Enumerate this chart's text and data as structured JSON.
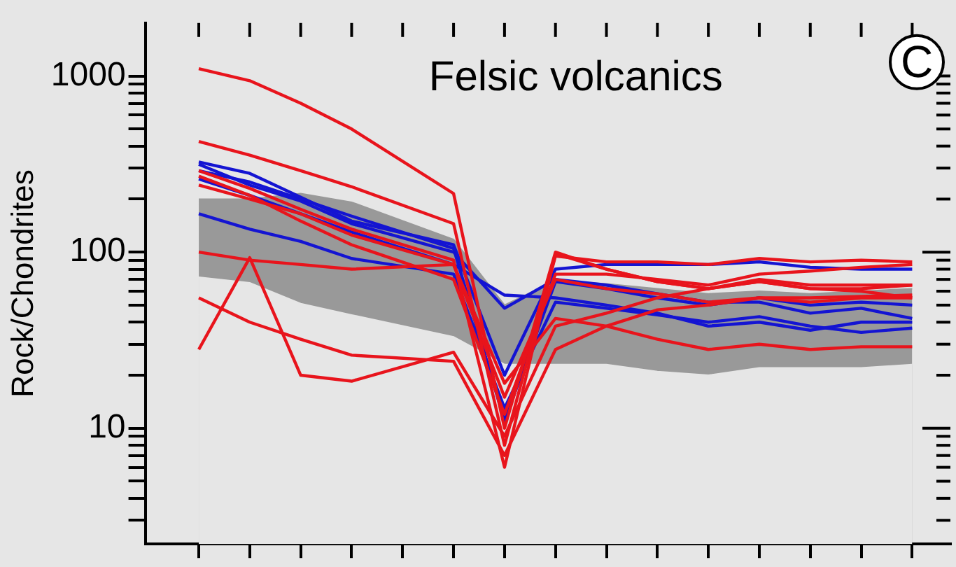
{
  "chart_data": {
    "type": "line",
    "title": "Felsic volcanics",
    "ylabel": "Rock/Chondrites",
    "annotations": [
      "C"
    ],
    "categories": [
      null,
      null,
      null,
      null,
      null,
      null,
      null,
      null,
      null,
      null,
      null,
      null,
      null,
      null,
      null
    ],
    "log": true,
    "grid": false,
    "legend": false,
    "marker": "none",
    "line_style": "solid",
    "ylim": [
      2.2,
      2000
    ],
    "yticks": [
      {
        "value": 3,
        "label": null
      },
      {
        "value": 4,
        "label": null
      },
      {
        "value": 5,
        "label": null
      },
      {
        "value": 6,
        "label": null
      },
      {
        "value": 7,
        "label": null
      },
      {
        "value": 8,
        "label": null
      },
      {
        "value": 9,
        "label": null
      },
      10,
      {
        "value": 20,
        "label": null
      },
      {
        "value": 30,
        "label": null
      },
      {
        "value": 40,
        "label": null
      },
      {
        "value": 50,
        "label": null
      },
      {
        "value": 60,
        "label": null
      },
      {
        "value": 70,
        "label": null
      },
      {
        "value": 80,
        "label": null
      },
      {
        "value": 90,
        "label": null
      },
      100,
      {
        "value": 200,
        "label": null
      },
      {
        "value": 300,
        "label": null
      },
      {
        "value": 400,
        "label": null
      },
      {
        "value": 500,
        "label": null
      },
      {
        "value": 600,
        "label": null
      },
      {
        "value": 700,
        "label": null
      },
      {
        "value": 800,
        "label": null
      },
      {
        "value": 900,
        "label": null
      },
      1000
    ],
    "series": [
      {
        "type": "area",
        "color": "#999999",
        "values": [
          200,
          200,
          215,
          192,
          null,
          118,
          50,
          69,
          66,
          62,
          58,
          60,
          58,
          60,
          62
        ]
      },
      {
        "type": "area",
        "color": "#e6e6e6",
        "values": [
          72,
          67,
          51,
          44,
          null,
          33,
          23,
          23,
          23,
          21,
          20,
          22,
          22,
          22,
          23
        ]
      },
      {
        "color": "#e8141c",
        "values": [
          1100,
          940,
          700,
          500,
          null,
          215,
          10,
          100,
          80,
          68,
          62,
          70,
          65,
          65,
          65
        ]
      },
      {
        "color": "#e8141c",
        "values": [
          425,
          355,
          290,
          235,
          null,
          145,
          8,
          95,
          88,
          88,
          85,
          92,
          88,
          90,
          88
        ]
      },
      {
        "color": "#e8141c",
        "values": [
          290,
          230,
          175,
          135,
          null,
          90,
          6,
          98,
          80,
          68,
          62,
          68,
          62,
          62,
          65
        ]
      },
      {
        "color": "#e8141c",
        "values": [
          270,
          210,
          150,
          110,
          null,
          70,
          12,
          75,
          75,
          70,
          65,
          75,
          78,
          82,
          85
        ]
      },
      {
        "color": "#e8141c",
        "values": [
          240,
          200,
          165,
          125,
          null,
          85,
          15,
          70,
          62,
          58,
          52,
          55,
          52,
          55,
          55
        ]
      },
      {
        "color": "#e8141c",
        "values": [
          100,
          90,
          85,
          80,
          null,
          85,
          18,
          42,
          38,
          32,
          28,
          30,
          28,
          29,
          29
        ]
      },
      {
        "color": "#e8141c",
        "values": [
          55,
          40,
          32,
          26,
          null,
          24,
          7,
          28,
          38,
          47,
          50,
          55,
          55,
          56,
          57
        ]
      },
      {
        "color": "#e8141c",
        "values": [
          28,
          93,
          20,
          18.5,
          null,
          27,
          9,
          38,
          45,
          55,
          62,
          68,
          62,
          60,
          55
        ]
      },
      {
        "color": "#1414d2",
        "values": [
          325,
          280,
          205,
          150,
          null,
          110,
          20,
          80,
          85,
          85,
          85,
          88,
          82,
          80,
          80
        ]
      },
      {
        "color": "#1414d2",
        "values": [
          315,
          240,
          195,
          145,
          null,
          100,
          48,
          70,
          65,
          58,
          52,
          52,
          45,
          48,
          42
        ]
      },
      {
        "color": "#1414d2",
        "values": [
          260,
          210,
          165,
          130,
          null,
          85,
          57,
          55,
          50,
          45,
          38,
          40,
          36,
          40,
          40
        ]
      },
      {
        "color": "#1414d2",
        "values": [
          165,
          135,
          115,
          92,
          null,
          75,
          13,
          52,
          48,
          44,
          40,
          43,
          38,
          35,
          37
        ]
      },
      {
        "color": "#1414d2",
        "values": [
          290,
          250,
          200,
          160,
          null,
          105,
          11,
          68,
          62,
          55,
          50,
          55,
          50,
          52,
          50
        ]
      }
    ]
  }
}
